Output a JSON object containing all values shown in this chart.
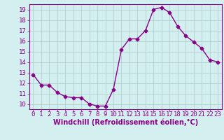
{
  "x": [
    0,
    1,
    2,
    3,
    4,
    5,
    6,
    7,
    8,
    9,
    10,
    11,
    12,
    13,
    14,
    15,
    16,
    17,
    18,
    19,
    20,
    21,
    22,
    23
  ],
  "y": [
    12.8,
    11.8,
    11.8,
    11.1,
    10.7,
    10.6,
    10.6,
    10.0,
    9.8,
    9.8,
    11.4,
    15.2,
    16.2,
    16.2,
    17.0,
    19.0,
    19.2,
    18.7,
    17.4,
    16.5,
    15.9,
    15.3,
    14.2,
    14.0
  ],
  "line_color": "#880088",
  "marker": "D",
  "marker_size": 2.5,
  "bg_color": "#d4efef",
  "grid_color": "#aacccc",
  "xlabel": "Windchill (Refroidissement éolien,°C)",
  "xlabel_color": "#880088",
  "xlabel_fontsize": 7,
  "tick_color": "#880088",
  "tick_fontsize": 6.5,
  "ylim": [
    9.5,
    19.5
  ],
  "xlim": [
    -0.5,
    23.5
  ],
  "yticks": [
    10,
    11,
    12,
    13,
    14,
    15,
    16,
    17,
    18,
    19
  ],
  "xticks": [
    0,
    1,
    2,
    3,
    4,
    5,
    6,
    7,
    8,
    9,
    10,
    11,
    12,
    13,
    14,
    15,
    16,
    17,
    18,
    19,
    20,
    21,
    22,
    23
  ],
  "spine_color": "#880088",
  "linewidth": 1.0
}
